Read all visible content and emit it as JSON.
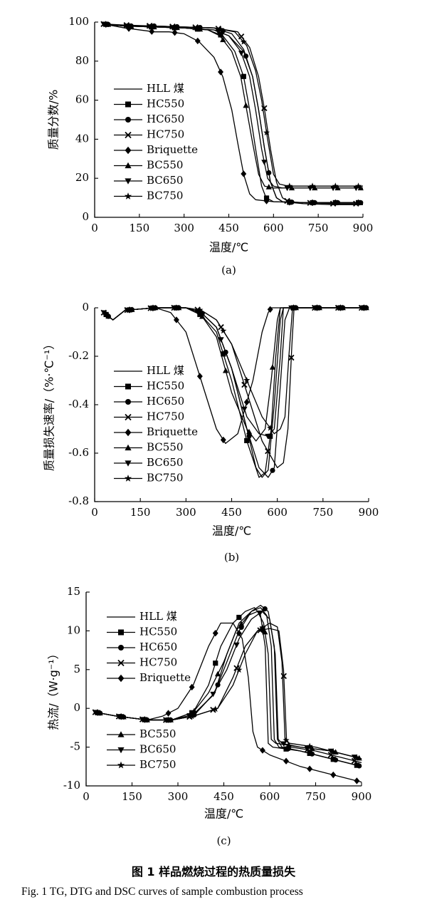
{
  "caption": {
    "zh": "图 1   样品燃烧过程的热质量损失",
    "en": "Fig. 1   TG, DTG and DSC curves of sample combustion process"
  },
  "series_names": [
    "HLL 煤",
    "HC550",
    "HC650",
    "HC750",
    "Briquette",
    "BC550",
    "BC650",
    "BC750"
  ],
  "series_markers": [
    "line",
    "square",
    "circle",
    "cross",
    "diamond",
    "triangle-up",
    "triangle-down",
    "star"
  ],
  "chart_data": [
    {
      "type": "line",
      "panel_label": "(a)",
      "xlabel": "温度/℃",
      "ylabel": "质量分数/%",
      "xlim": [
        0,
        900
      ],
      "ylim": [
        0,
        100
      ],
      "xticks": [
        0,
        150,
        300,
        450,
        600,
        750,
        900
      ],
      "yticks": [
        0,
        20,
        40,
        60,
        80,
        100
      ],
      "legend": "left-middle",
      "series": [
        {
          "name": "HLL 煤",
          "x": [
            30,
            100,
            200,
            300,
            400,
            450,
            500,
            530,
            550,
            570,
            590,
            610,
            630,
            700,
            800,
            900
          ],
          "y": [
            99,
            98,
            97.5,
            97,
            96,
            93,
            85,
            72,
            55,
            35,
            18,
            10,
            8,
            7,
            6.5,
            6.5
          ]
        },
        {
          "name": "HC550",
          "x": [
            30,
            100,
            200,
            300,
            380,
            430,
            470,
            500,
            520,
            540,
            560,
            575,
            600,
            700,
            800,
            900
          ],
          "y": [
            99,
            98,
            97.5,
            97,
            96,
            93,
            85,
            72,
            55,
            35,
            16,
            10,
            8,
            7.5,
            7.5,
            7.5
          ]
        },
        {
          "name": "HC650",
          "x": [
            30,
            100,
            200,
            300,
            400,
            460,
            500,
            530,
            550,
            570,
            590,
            610,
            630,
            700,
            800,
            900
          ],
          "y": [
            99,
            98,
            98,
            97.5,
            97,
            94,
            86,
            72,
            55,
            35,
            18,
            10,
            8,
            7.5,
            7.5,
            7.5
          ]
        },
        {
          "name": "HC750",
          "x": [
            30,
            100,
            200,
            300,
            400,
            480,
            520,
            550,
            570,
            590,
            610,
            630,
            650,
            700,
            800,
            900
          ],
          "y": [
            99,
            98.5,
            98,
            97.5,
            97,
            95,
            87,
            72,
            55,
            35,
            18,
            10,
            8,
            7.5,
            7,
            7
          ]
        },
        {
          "name": "Briquette",
          "x": [
            30,
            100,
            200,
            250,
            300,
            350,
            400,
            430,
            460,
            480,
            500,
            520,
            540,
            600,
            700,
            800,
            900
          ],
          "y": [
            99,
            97,
            95,
            95,
            94,
            90,
            82,
            72,
            55,
            38,
            22,
            12,
            9,
            8,
            7.5,
            7.5,
            7.5
          ]
        },
        {
          "name": "BC550",
          "x": [
            30,
            100,
            200,
            300,
            380,
            420,
            460,
            490,
            510,
            530,
            550,
            570,
            600,
            700,
            800,
            900
          ],
          "y": [
            99,
            98,
            97.5,
            97,
            96,
            93,
            85,
            72,
            55,
            38,
            22,
            16,
            15,
            15,
            15,
            15
          ]
        },
        {
          "name": "BC650",
          "x": [
            30,
            100,
            200,
            300,
            400,
            450,
            490,
            520,
            540,
            560,
            580,
            600,
            630,
            700,
            800,
            900
          ],
          "y": [
            99,
            98,
            97.5,
            97,
            96,
            93,
            85,
            72,
            55,
            35,
            20,
            16,
            15,
            15,
            15,
            15
          ]
        },
        {
          "name": "BC750",
          "x": [
            30,
            100,
            200,
            300,
            400,
            470,
            510,
            540,
            560,
            580,
            600,
            620,
            650,
            700,
            800,
            900
          ],
          "y": [
            99,
            98,
            98,
            97.5,
            97,
            95,
            88,
            75,
            60,
            40,
            22,
            17,
            16,
            16,
            16,
            16
          ]
        }
      ]
    },
    {
      "type": "line",
      "panel_label": "(b)",
      "xlabel": "温度/℃",
      "ylabel": "质量损失速率/（%·℃⁻¹）",
      "xlim": [
        0,
        900
      ],
      "ylim": [
        -0.8,
        0
      ],
      "xticks": [
        0,
        150,
        300,
        450,
        600,
        750,
        900
      ],
      "yticks": [
        -0.8,
        -0.6,
        -0.4,
        -0.2,
        0
      ],
      "legend": "left-bottom",
      "series": [
        {
          "name": "HLL 煤",
          "x": [
            30,
            60,
            100,
            200,
            300,
            350,
            400,
            450,
            500,
            530,
            550,
            570,
            590,
            610,
            620,
            660,
            750,
            900
          ],
          "y": [
            -0.02,
            -0.05,
            -0.01,
            0,
            0,
            -0.02,
            -0.08,
            -0.25,
            -0.5,
            -0.66,
            -0.7,
            -0.67,
            -0.4,
            -0.05,
            0,
            0,
            0,
            0
          ]
        },
        {
          "name": "HC550",
          "x": [
            30,
            60,
            100,
            200,
            300,
            350,
            400,
            450,
            500,
            540,
            560,
            580,
            595,
            610,
            650,
            750,
            900
          ],
          "y": [
            -0.02,
            -0.05,
            -0.01,
            0,
            0,
            -0.03,
            -0.1,
            -0.3,
            -0.55,
            -0.7,
            -0.68,
            -0.5,
            -0.2,
            0,
            0,
            0,
            0
          ]
        },
        {
          "name": "HC650",
          "x": [
            30,
            60,
            100,
            200,
            300,
            350,
            400,
            450,
            500,
            540,
            570,
            590,
            610,
            625,
            640,
            750,
            900
          ],
          "y": [
            -0.02,
            -0.05,
            -0.01,
            0,
            0,
            -0.02,
            -0.08,
            -0.25,
            -0.5,
            -0.66,
            -0.7,
            -0.66,
            -0.32,
            -0.05,
            0,
            0,
            0
          ]
        },
        {
          "name": "HC750",
          "x": [
            30,
            60,
            100,
            200,
            300,
            350,
            400,
            450,
            500,
            550,
            600,
            620,
            635,
            648,
            655,
            750,
            900
          ],
          "y": [
            -0.02,
            -0.05,
            -0.01,
            0,
            0,
            -0.01,
            -0.05,
            -0.15,
            -0.35,
            -0.55,
            -0.66,
            -0.64,
            -0.5,
            -0.15,
            0,
            0,
            0
          ]
        },
        {
          "name": "Briquette",
          "x": [
            30,
            60,
            100,
            200,
            250,
            300,
            350,
            400,
            430,
            470,
            520,
            550,
            570,
            580,
            600,
            750,
            900
          ],
          "y": [
            -0.02,
            -0.05,
            -0.01,
            0,
            -0.02,
            -0.1,
            -0.3,
            -0.5,
            -0.56,
            -0.52,
            -0.3,
            -0.1,
            -0.02,
            0,
            0,
            0,
            0
          ]
        },
        {
          "name": "BC550",
          "x": [
            30,
            60,
            100,
            200,
            300,
            350,
            400,
            450,
            500,
            530,
            560,
            580,
            600,
            610,
            650,
            750,
            900
          ],
          "y": [
            -0.02,
            -0.05,
            -0.01,
            0,
            0,
            -0.03,
            -0.12,
            -0.35,
            -0.5,
            -0.55,
            -0.5,
            -0.3,
            -0.05,
            0,
            0,
            0,
            0
          ]
        },
        {
          "name": "BC650",
          "x": [
            30,
            60,
            100,
            200,
            300,
            350,
            400,
            450,
            500,
            540,
            570,
            590,
            610,
            620,
            650,
            750,
            900
          ],
          "y": [
            -0.02,
            -0.05,
            -0.01,
            0,
            0,
            -0.02,
            -0.08,
            -0.25,
            -0.45,
            -0.52,
            -0.53,
            -0.5,
            -0.2,
            0,
            0,
            0,
            0
          ]
        },
        {
          "name": "BC750",
          "x": [
            30,
            60,
            100,
            200,
            300,
            350,
            400,
            450,
            500,
            550,
            590,
            610,
            625,
            638,
            650,
            750,
            900
          ],
          "y": [
            -0.02,
            -0.05,
            -0.01,
            0,
            0,
            -0.01,
            -0.05,
            -0.15,
            -0.3,
            -0.45,
            -0.52,
            -0.5,
            -0.45,
            -0.2,
            0,
            0,
            0
          ]
        }
      ]
    },
    {
      "type": "line",
      "panel_label": "(c)",
      "xlabel": "温度/℃",
      "ylabel": "热流/（W·g⁻¹）",
      "xlim": [
        0,
        900
      ],
      "ylim": [
        -10,
        15
      ],
      "xticks": [
        0,
        150,
        300,
        450,
        600,
        750,
        900
      ],
      "yticks": [
        -10,
        -5,
        0,
        5,
        10,
        15
      ],
      "legend": "split",
      "series": [
        {
          "name": "HLL 煤",
          "x": [
            30,
            100,
            200,
            280,
            350,
            420,
            460,
            500,
            540,
            570,
            590,
            605,
            615,
            630,
            700,
            800,
            900
          ],
          "y": [
            -0.5,
            -1,
            -1.5,
            -1.5,
            -1,
            2,
            7,
            11,
            12.5,
            13,
            12,
            8,
            -4,
            -5,
            -5.5,
            -6.5,
            -7.5
          ]
        },
        {
          "name": "HC550",
          "x": [
            30,
            100,
            200,
            280,
            350,
            400,
            440,
            480,
            520,
            550,
            570,
            585,
            595,
            610,
            700,
            800,
            900
          ],
          "y": [
            -0.5,
            -1,
            -1.5,
            -1.5,
            -0.5,
            3,
            8,
            11,
            12.5,
            13,
            12,
            8,
            -4.5,
            -5,
            -5.5,
            -6.5,
            -7.5
          ]
        },
        {
          "name": "HC650",
          "x": [
            30,
            100,
            200,
            280,
            350,
            420,
            460,
            500,
            540,
            570,
            595,
            615,
            625,
            640,
            700,
            800,
            900
          ],
          "y": [
            -0.5,
            -1,
            -1.5,
            -1.5,
            -1,
            2,
            6,
            10,
            12.5,
            13.3,
            12.5,
            8,
            -4,
            -5,
            -5.5,
            -6.5,
            -7.5
          ]
        },
        {
          "name": "HC750",
          "x": [
            30,
            100,
            200,
            280,
            350,
            430,
            480,
            520,
            560,
            600,
            630,
            645,
            655,
            670,
            750,
            850,
            900
          ],
          "y": [
            -0.5,
            -1,
            -1.5,
            -1.5,
            -1,
            0,
            4,
            8,
            10,
            10.3,
            10,
            5,
            -4,
            -5,
            -5.5,
            -6.5,
            -7
          ]
        },
        {
          "name": "Briquette",
          "x": [
            30,
            100,
            200,
            250,
            300,
            350,
            400,
            440,
            480,
            510,
            530,
            545,
            560,
            600,
            700,
            800,
            900
          ],
          "y": [
            -0.5,
            -1,
            -1.5,
            -1,
            0,
            3,
            8,
            11,
            11,
            9,
            4,
            -3,
            -5,
            -6,
            -7.5,
            -8.5,
            -9.5
          ]
        },
        {
          "name": "BC550",
          "x": [
            30,
            100,
            200,
            280,
            350,
            400,
            450,
            490,
            530,
            560,
            580,
            595,
            605,
            620,
            700,
            800,
            900
          ],
          "y": [
            -0.5,
            -1,
            -1.5,
            -1.5,
            -0.5,
            2,
            6,
            10,
            12,
            12.5,
            11,
            7,
            -4,
            -4.5,
            -5,
            -5.5,
            -6.5
          ]
        },
        {
          "name": "BC650",
          "x": [
            30,
            100,
            200,
            280,
            350,
            410,
            460,
            500,
            540,
            575,
            600,
            618,
            628,
            640,
            700,
            800,
            900
          ],
          "y": [
            -0.5,
            -1,
            -1.5,
            -1.5,
            -0.8,
            1.5,
            5,
            9,
            11.5,
            12.5,
            11.5,
            7,
            -4,
            -4.5,
            -5,
            -5.5,
            -6.5
          ]
        },
        {
          "name": "BC750",
          "x": [
            30,
            100,
            200,
            280,
            350,
            430,
            480,
            520,
            560,
            600,
            625,
            640,
            650,
            665,
            750,
            850,
            900
          ],
          "y": [
            -0.5,
            -1,
            -1.5,
            -1.5,
            -1,
            0,
            3,
            7,
            10,
            11,
            10.5,
            6,
            -4,
            -4.5,
            -5,
            -6,
            -6.5
          ]
        }
      ]
    }
  ]
}
